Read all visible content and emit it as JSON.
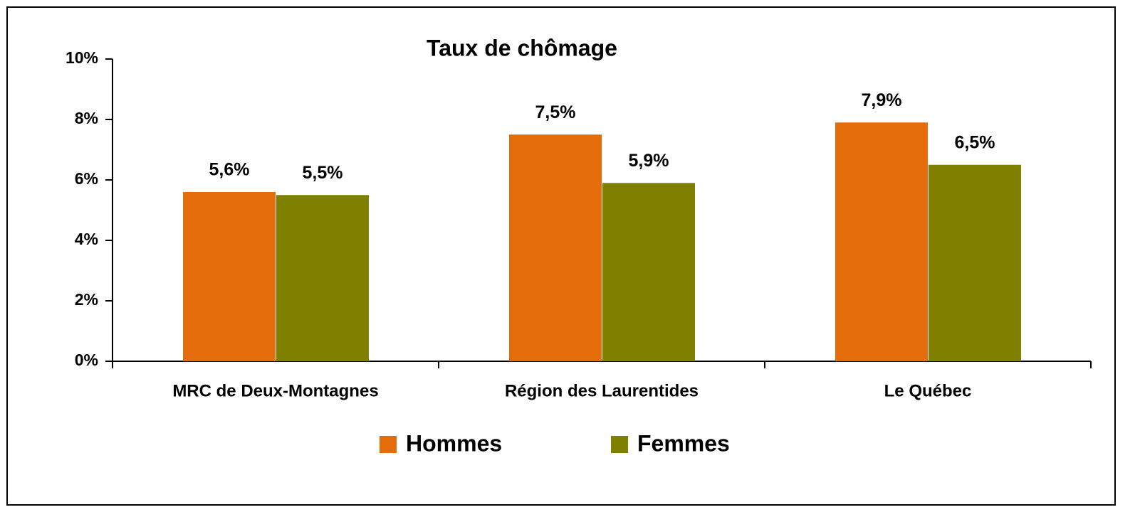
{
  "chart_data": {
    "type": "bar",
    "title": "Taux de chômage",
    "categories": [
      "MRC de Deux-Montagnes",
      "Région des Laurentides",
      "Le Québec"
    ],
    "series": [
      {
        "name": "Hommes",
        "color": "#e46c0a",
        "values": [
          5.6,
          7.5,
          7.9
        ],
        "value_labels": [
          "5,6%",
          "7,5%",
          "7,9%"
        ]
      },
      {
        "name": "Femmes",
        "color": "#808000",
        "values": [
          5.5,
          5.9,
          6.5
        ],
        "value_labels": [
          "5,5%",
          "5,9%",
          "6,5%"
        ]
      }
    ],
    "ylim": [
      0,
      10
    ],
    "yticks": [
      {
        "value": 0,
        "label": "0%"
      },
      {
        "value": 2,
        "label": "2%"
      },
      {
        "value": 4,
        "label": "4%"
      },
      {
        "value": 6,
        "label": "6%"
      },
      {
        "value": 8,
        "label": "8%"
      },
      {
        "value": 10,
        "label": "10%"
      }
    ],
    "grid": false,
    "legend": "bottom"
  }
}
